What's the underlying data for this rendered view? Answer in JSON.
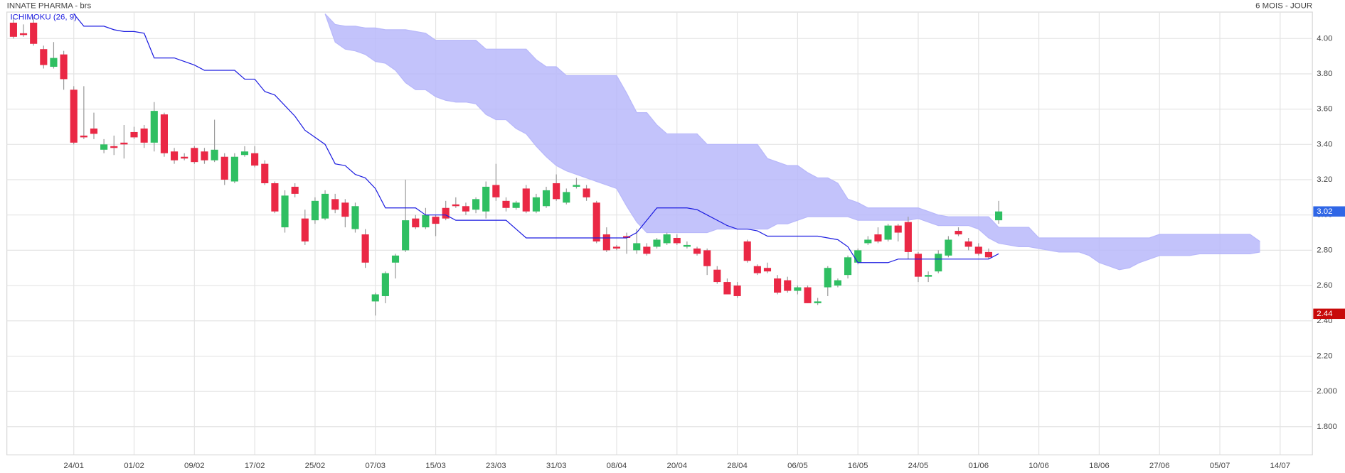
{
  "chart_data": {
    "type": "candlestick",
    "title": "INNATE PHARMA - brs",
    "period": "6 MOIS - JOUR",
    "up_color": "#2fbf62",
    "down_color": "#ea2845",
    "grid": true,
    "ylim": [
      1.64,
      4.15
    ],
    "yticks": [
      {
        "value": 1.8,
        "label": "1.800"
      },
      {
        "value": 2,
        "label": "2.000"
      },
      {
        "value": 2.2,
        "label": "2.20"
      },
      {
        "value": 2.4,
        "label": "2.40"
      },
      {
        "value": 2.6,
        "label": "2.60"
      },
      {
        "value": 2.8,
        "label": "2.80"
      },
      {
        "value": 3,
        "label": "3.00"
      },
      {
        "value": 3.2,
        "label": "3.20"
      },
      {
        "value": 3.4,
        "label": "3.40"
      },
      {
        "value": 3.6,
        "label": "3.60"
      },
      {
        "value": 3.8,
        "label": "3.80"
      },
      {
        "value": 4,
        "label": "4.00"
      }
    ],
    "categories": [
      null,
      null,
      null,
      null,
      null,
      null,
      "24/01",
      null,
      null,
      null,
      null,
      null,
      "01/02",
      null,
      null,
      null,
      null,
      null,
      "09/02",
      null,
      null,
      null,
      null,
      null,
      "17/02",
      null,
      null,
      null,
      null,
      null,
      "25/02",
      null,
      null,
      null,
      null,
      null,
      "07/03",
      null,
      null,
      null,
      null,
      null,
      "15/03",
      null,
      null,
      null,
      null,
      null,
      "23/03",
      null,
      null,
      null,
      null,
      null,
      "31/03",
      null,
      null,
      null,
      null,
      null,
      "08/04",
      null,
      null,
      null,
      null,
      null,
      "20/04",
      null,
      null,
      null,
      null,
      null,
      "28/04",
      null,
      null,
      null,
      null,
      null,
      "06/05",
      null,
      null,
      null,
      null,
      null,
      "16/05",
      null,
      null,
      null,
      null,
      null,
      "24/05",
      null,
      null,
      null,
      null,
      null,
      "01/06",
      null,
      null,
      null,
      null,
      null,
      "10/06",
      null,
      null,
      null,
      null,
      null,
      "18/06",
      null,
      null,
      null,
      null,
      null,
      "27/06",
      null,
      null,
      null,
      null,
      null,
      "05/07",
      null,
      null,
      null,
      null,
      null,
      "14/07"
    ],
    "open": [
      4.09,
      4.03,
      4.09,
      3.94,
      3.84,
      3.91,
      3.71,
      3.45,
      3.49,
      3.37,
      3.39,
      3.41,
      3.47,
      3.49,
      3.41,
      3.57,
      3.36,
      3.33,
      3.38,
      3.36,
      3.31,
      3.33,
      3.19,
      3.34,
      3.35,
      3.29,
      3.18,
      2.93,
      3.16,
      2.98,
      2.97,
      2.98,
      3.09,
      3.07,
      2.92,
      2.89,
      2.51,
      2.54,
      2.73,
      2.8,
      2.98,
      2.93,
      2.99,
      3.04,
      3.06,
      3.05,
      3.03,
      3.02,
      3.17,
      3.08,
      3.04,
      3.15,
      3.02,
      3.05,
      3.18,
      3.07,
      3.16,
      3.15,
      3.07,
      2.89,
      2.82,
      2.88,
      2.8,
      2.82,
      2.82,
      2.84,
      2.87,
      2.82,
      2.81,
      2.8,
      2.69,
      2.62,
      2.6,
      2.85,
      2.71,
      2.7,
      2.64,
      2.63,
      2.57,
      2.59,
      2.5,
      2.59,
      2.6,
      2.66,
      2.73,
      2.84,
      2.89,
      2.86,
      2.94,
      2.96,
      2.78,
      2.65,
      2.68,
      2.77,
      2.91,
      2.85,
      2.82,
      2.79,
      2.97,
      null,
      null,
      null,
      null,
      null,
      null,
      null,
      null,
      null,
      null,
      null,
      null,
      null,
      null,
      null,
      null,
      null,
      null,
      null,
      null,
      null,
      null,
      null,
      null,
      null,
      null,
      null,
      null
    ],
    "high": [
      4.12,
      4.08,
      4.12,
      3.96,
      3.98,
      3.93,
      3.73,
      3.73,
      3.58,
      3.43,
      3.45,
      3.51,
      3.5,
      3.51,
      3.64,
      3.58,
      3.38,
      3.35,
      3.39,
      3.38,
      3.54,
      3.35,
      3.35,
      3.39,
      3.39,
      3.31,
      3.19,
      3.14,
      3.18,
      3.03,
      3.1,
      3.14,
      3.12,
      3.09,
      3.07,
      2.92,
      2.56,
      2.68,
      2.78,
      3.2,
      3.0,
      3.04,
      3.0,
      3.08,
      3.1,
      3.07,
      3.1,
      3.19,
      3.29,
      3.1,
      3.08,
      3.17,
      3.12,
      3.16,
      3.23,
      3.15,
      3.21,
      3.17,
      3.08,
      2.93,
      2.83,
      2.9,
      2.92,
      2.84,
      2.87,
      2.9,
      2.89,
      2.85,
      2.82,
      2.81,
      2.71,
      2.64,
      2.62,
      2.86,
      2.72,
      2.73,
      2.66,
      2.65,
      2.6,
      2.6,
      2.53,
      2.71,
      2.64,
      2.77,
      2.81,
      2.88,
      2.93,
      2.95,
      2.95,
      2.99,
      2.79,
      2.68,
      2.8,
      2.88,
      2.93,
      2.87,
      2.84,
      2.81,
      3.08,
      null,
      null,
      null,
      null,
      null,
      null,
      null,
      null,
      null,
      null,
      null,
      null,
      null,
      null,
      null,
      null,
      null,
      null,
      null,
      null,
      null,
      null,
      null,
      null,
      null,
      null,
      null,
      null
    ],
    "low": [
      4.0,
      4.01,
      3.96,
      3.83,
      3.83,
      3.71,
      3.4,
      3.43,
      3.43,
      3.35,
      3.34,
      3.32,
      3.43,
      3.38,
      3.36,
      3.33,
      3.29,
      3.31,
      3.29,
      3.29,
      3.3,
      3.17,
      3.18,
      3.33,
      3.27,
      3.17,
      3.01,
      2.9,
      3.1,
      2.83,
      2.95,
      2.97,
      3.01,
      2.93,
      2.9,
      2.7,
      2.43,
      2.5,
      2.64,
      2.79,
      2.92,
      2.92,
      2.88,
      2.97,
      3.04,
      3.0,
      3.01,
      2.98,
      3.08,
      3.02,
      3.03,
      3.01,
      3.01,
      3.04,
      3.08,
      3.06,
      3.15,
      3.08,
      2.84,
      2.79,
      2.8,
      2.78,
      2.78,
      2.77,
      2.81,
      2.83,
      2.83,
      2.81,
      2.77,
      2.66,
      2.61,
      2.55,
      2.53,
      2.73,
      2.66,
      2.67,
      2.55,
      2.56,
      2.55,
      2.5,
      2.49,
      2.54,
      2.59,
      2.64,
      2.72,
      2.83,
      2.84,
      2.85,
      2.85,
      2.75,
      2.62,
      2.62,
      2.67,
      2.76,
      2.88,
      2.8,
      2.77,
      2.75,
      2.95,
      null,
      null,
      null,
      null,
      null,
      null,
      null,
      null,
      null,
      null,
      null,
      null,
      null,
      null,
      null,
      null,
      null,
      null,
      null,
      null,
      null,
      null,
      null,
      null,
      null,
      null,
      null,
      null
    ],
    "close": [
      4.01,
      4.02,
      3.97,
      3.85,
      3.89,
      3.77,
      3.41,
      3.44,
      3.46,
      3.4,
      3.38,
      3.4,
      3.44,
      3.41,
      3.59,
      3.35,
      3.31,
      3.32,
      3.3,
      3.31,
      3.37,
      3.2,
      3.33,
      3.36,
      3.28,
      3.18,
      3.02,
      3.11,
      3.12,
      2.85,
      3.08,
      3.12,
      3.03,
      2.99,
      3.05,
      2.73,
      2.55,
      2.67,
      2.77,
      2.97,
      2.93,
      3.0,
      2.95,
      2.98,
      3.05,
      3.02,
      3.09,
      3.16,
      3.1,
      3.04,
      3.07,
      3.02,
      3.1,
      3.14,
      3.09,
      3.13,
      3.17,
      3.1,
      2.85,
      2.8,
      2.81,
      2.87,
      2.84,
      2.78,
      2.86,
      2.89,
      2.84,
      2.83,
      2.78,
      2.71,
      2.62,
      2.55,
      2.54,
      2.74,
      2.67,
      2.68,
      2.56,
      2.57,
      2.59,
      2.5,
      2.51,
      2.7,
      2.63,
      2.76,
      2.8,
      2.86,
      2.85,
      2.94,
      2.9,
      2.79,
      2.65,
      2.66,
      2.78,
      2.86,
      2.89,
      2.82,
      2.78,
      2.76,
      3.02,
      null,
      null,
      null,
      null,
      null,
      null,
      null,
      null,
      null,
      null,
      null,
      null,
      null,
      null,
      null,
      null,
      null,
      null,
      null,
      null,
      null,
      null,
      null,
      null,
      null,
      null,
      null,
      null
    ],
    "series": [
      {
        "name": "ICHIMOKU (26, 9)",
        "color": "#1c1ce0",
        "values": [
          null,
          null,
          null,
          null,
          null,
          null,
          4.14,
          4.07,
          4.07,
          4.07,
          4.05,
          4.04,
          4.04,
          4.03,
          3.89,
          3.89,
          3.89,
          3.87,
          3.85,
          3.82,
          3.82,
          3.82,
          3.82,
          3.77,
          3.77,
          3.7,
          3.68,
          3.62,
          3.56,
          3.48,
          3.44,
          3.4,
          3.29,
          3.28,
          3.23,
          3.21,
          3.15,
          3.04,
          3.04,
          3.04,
          3.04,
          3.0,
          3.0,
          3.0,
          2.97,
          2.97,
          2.97,
          2.97,
          2.97,
          2.97,
          2.92,
          2.87,
          2.87,
          2.87,
          2.87,
          2.87,
          2.87,
          2.87,
          2.87,
          2.87,
          2.87,
          2.87,
          2.9,
          2.97,
          3.04,
          3.04,
          3.04,
          3.04,
          3.03,
          3.0,
          2.97,
          2.94,
          2.92,
          2.92,
          2.91,
          2.88,
          2.88,
          2.88,
          2.88,
          2.88,
          2.88,
          2.87,
          2.86,
          2.82,
          2.73,
          2.73,
          2.73,
          2.73,
          2.75,
          2.75,
          2.75,
          2.75,
          2.75,
          2.75,
          2.75,
          2.75,
          2.75,
          2.75,
          2.78,
          null,
          null,
          null,
          null,
          null,
          null,
          null,
          null,
          null,
          null,
          null,
          null,
          null,
          null,
          null,
          null,
          null,
          null,
          null,
          null,
          null,
          null,
          null,
          null,
          null,
          null,
          null,
          null
        ]
      }
    ],
    "cloud": {
      "color": "#b8b8fa",
      "upper": [
        null,
        null,
        null,
        null,
        null,
        null,
        null,
        null,
        null,
        null,
        null,
        null,
        null,
        null,
        null,
        null,
        null,
        null,
        null,
        null,
        null,
        null,
        null,
        null,
        null,
        null,
        null,
        null,
        null,
        null,
        null,
        4.14,
        4.08,
        4.07,
        4.07,
        4.06,
        4.06,
        4.05,
        4.05,
        4.05,
        4.04,
        4.03,
        3.99,
        3.99,
        3.99,
        3.99,
        3.99,
        3.94,
        3.94,
        3.94,
        3.94,
        3.94,
        3.88,
        3.84,
        3.84,
        3.79,
        3.79,
        3.79,
        3.79,
        3.79,
        3.79,
        3.69,
        3.58,
        3.58,
        3.51,
        3.46,
        3.46,
        3.46,
        3.46,
        3.4,
        3.4,
        3.4,
        3.4,
        3.4,
        3.4,
        3.32,
        3.3,
        3.28,
        3.28,
        3.24,
        3.21,
        3.21,
        3.18,
        3.09,
        3.07,
        3.04,
        3.04,
        3.04,
        3.04,
        3.04,
        3.04,
        3.02,
        3.0,
        2.99,
        2.99,
        2.99,
        2.99,
        2.99,
        2.93,
        2.93,
        2.93,
        2.93,
        2.87,
        2.87,
        2.87,
        2.87,
        2.87,
        2.87,
        2.87,
        2.87,
        2.87,
        2.87,
        2.87,
        2.87,
        2.89,
        2.89,
        2.89,
        2.89,
        2.89,
        2.89,
        2.89,
        2.89,
        2.89,
        2.89,
        2.85,
        null,
        null
      ],
      "lower": [
        null,
        null,
        null,
        null,
        null,
        null,
        null,
        null,
        null,
        null,
        null,
        null,
        null,
        null,
        null,
        null,
        null,
        null,
        null,
        null,
        null,
        null,
        null,
        null,
        null,
        null,
        null,
        null,
        null,
        null,
        null,
        4.14,
        3.98,
        3.94,
        3.93,
        3.91,
        3.87,
        3.86,
        3.82,
        3.75,
        3.71,
        3.71,
        3.67,
        3.65,
        3.64,
        3.64,
        3.63,
        3.57,
        3.54,
        3.54,
        3.49,
        3.46,
        3.39,
        3.33,
        3.28,
        3.25,
        3.23,
        3.21,
        3.19,
        3.17,
        3.15,
        3.05,
        2.96,
        2.9,
        2.9,
        2.9,
        2.9,
        2.9,
        2.9,
        2.9,
        2.92,
        2.92,
        2.92,
        2.92,
        2.92,
        2.92,
        2.95,
        2.95,
        2.97,
        2.99,
        2.99,
        2.99,
        2.99,
        2.99,
        2.97,
        2.97,
        2.97,
        2.97,
        2.97,
        2.97,
        2.98,
        2.96,
        2.94,
        2.94,
        2.94,
        2.94,
        2.92,
        2.87,
        2.84,
        2.83,
        2.82,
        2.82,
        2.81,
        2.8,
        2.79,
        2.79,
        2.79,
        2.77,
        2.73,
        2.71,
        2.69,
        2.7,
        2.73,
        2.75,
        2.77,
        2.77,
        2.77,
        2.77,
        2.78,
        2.78,
        2.78,
        2.78,
        2.78,
        2.78,
        2.79,
        null,
        null
      ]
    },
    "markers": [
      {
        "value": 3.02,
        "color": "#2f66e6"
      },
      {
        "value": 2.44,
        "color": "#c80a0a"
      }
    ]
  }
}
